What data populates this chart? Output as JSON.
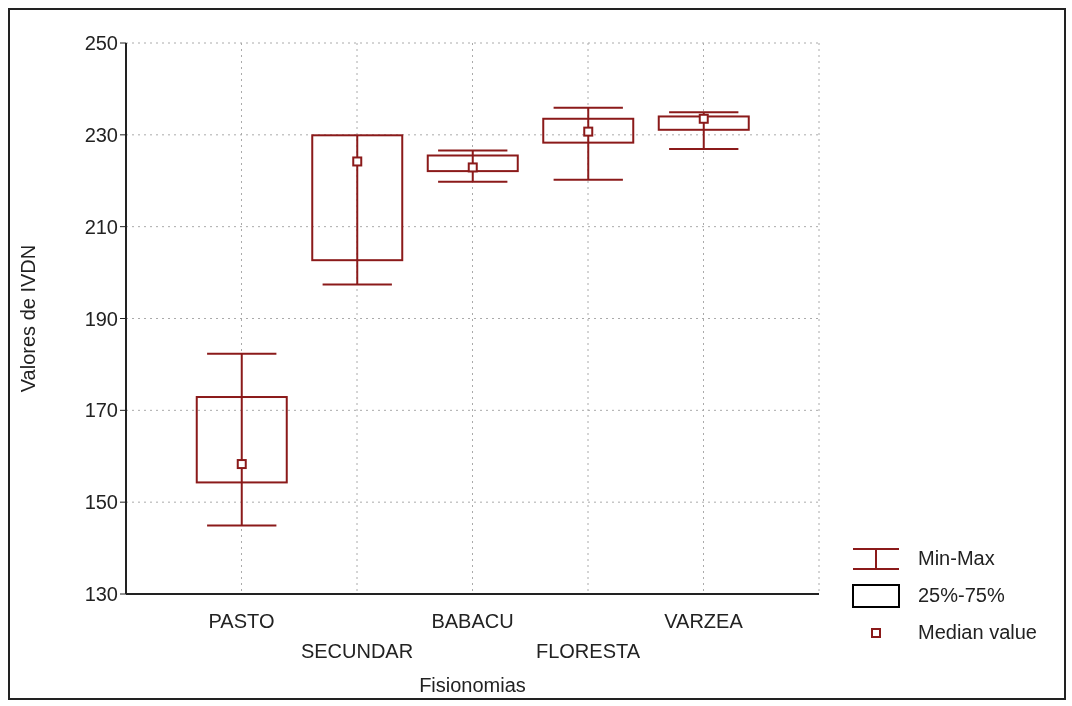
{
  "chart_data": {
    "type": "box",
    "xlabel": "Fisionomias",
    "ylabel": "Valores de IVDN",
    "categories": [
      "PASTO",
      "SECUNDAR",
      "BABACU",
      "FLORESTA",
      "VARZEA"
    ],
    "color": "#8b1a1a",
    "boxes": [
      {
        "low": 144.9,
        "q1": 154.3,
        "median": 158.3,
        "q3": 172.9,
        "high": 182.3
      },
      {
        "low": 197.4,
        "q1": 202.7,
        "median": 224.2,
        "q3": 229.9,
        "high": 229.9
      },
      {
        "low": 219.8,
        "q1": 222.1,
        "median": 222.9,
        "q3": 225.5,
        "high": 226.6
      },
      {
        "low": 220.2,
        "q1": 228.3,
        "median": 230.7,
        "q3": 233.5,
        "high": 235.9
      },
      {
        "low": 226.9,
        "q1": 231.1,
        "median": 233.5,
        "q3": 234.0,
        "high": 234.9
      }
    ],
    "ylim": [
      130,
      250
    ],
    "yticks": [
      130,
      150,
      170,
      190,
      210,
      230,
      250
    ],
    "grid": true,
    "annotations": [
      "Min-Max",
      "25%-75%",
      "Median value"
    ]
  }
}
